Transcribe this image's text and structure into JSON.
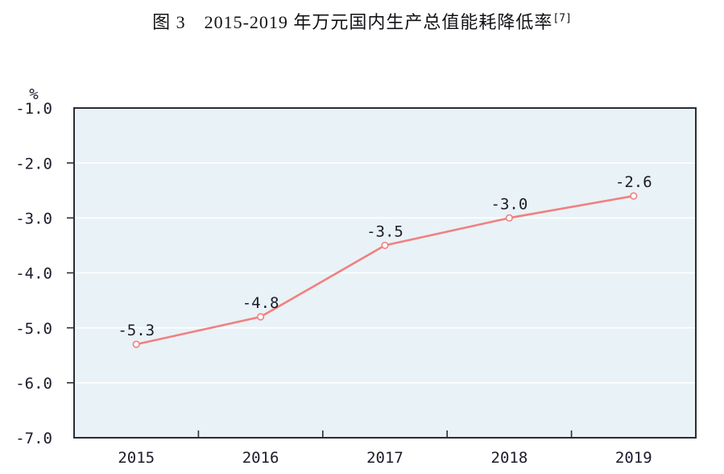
{
  "figure": {
    "title": "图 3　2015-2019 年万元国内生产总值能耗降低率",
    "footnote_ref": "[7]"
  },
  "chart_data": {
    "type": "line",
    "title": "图 3 2015-2019 年万元国内生产总值能耗降低率[7]",
    "categories": [
      "2015",
      "2016",
      "2017",
      "2018",
      "2019"
    ],
    "values": [
      -5.3,
      -4.8,
      -3.5,
      -3.0,
      -2.6
    ],
    "data_labels": [
      "-5.3",
      "-4.8",
      "-3.5",
      "-3.0",
      "-2.6"
    ],
    "xlabel": "",
    "ylabel": "%",
    "ylim": [
      -7.0,
      -1.0
    ],
    "yticks": [
      -1.0,
      -2.0,
      -3.0,
      -4.0,
      -5.0,
      -6.0,
      -7.0
    ],
    "ytick_labels": [
      "-1.0",
      "-2.0",
      "-3.0",
      "-4.0",
      "-5.0",
      "-6.0",
      "-7.0"
    ],
    "grid": true,
    "legend": false,
    "colors": {
      "line": "#f08080",
      "marker_fill": "#ffffff",
      "plot_bg": "#e9f2f6",
      "grid": "#ffffff",
      "axis": "#2b2d33",
      "label_text": "#1b1b2b",
      "footnote_ref": "#3a46c8"
    }
  }
}
